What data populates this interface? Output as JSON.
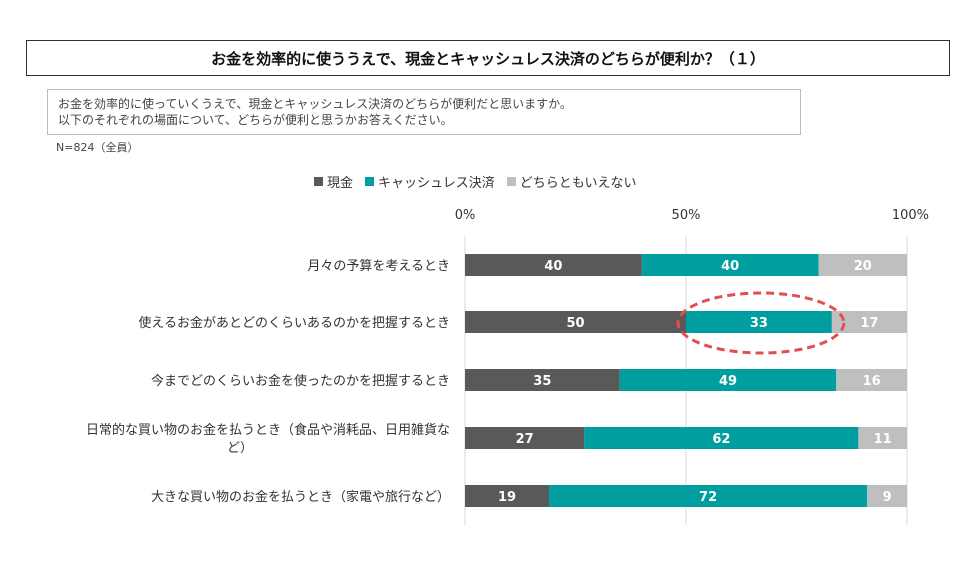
{
  "header": {
    "title": "お金を効率的に使ううえで、現金とキャッシュレス決済のどちらが便利か？（１）"
  },
  "question": {
    "line1": "お金を効率的に使っていくうえで、現金とキャッシュレス決済のどちらが便利だと思いますか。",
    "line2": "以下のそれぞれの場面について、どちらが便利と思うかお答えください。"
  },
  "sample_note": "N=824（全員）",
  "colors": {
    "cash": "#595959",
    "cashless": "#009E9E",
    "neither": "#BFBFBF",
    "highlight": "#E05050"
  },
  "chart_data": {
    "type": "bar",
    "orientation": "horizontal",
    "stacked": true,
    "legend_position": "top",
    "xlim": [
      0,
      100
    ],
    "x_ticks": [
      "0%",
      "50%",
      "100%"
    ],
    "categories": [
      [
        "月々の予算を考えるとき"
      ],
      [
        "使えるお金があとどのくらいあるのかを把握するとき"
      ],
      [
        "今までどのくらいお金を使ったのかを把握するとき"
      ],
      [
        "日常的な買い物のお金を払うとき（食品や消耗品、日用雑貨な",
        "ど）"
      ],
      [
        "大きな買い物のお金を払うとき（家電や旅行など）"
      ]
    ],
    "series": [
      {
        "name": "現金",
        "values": [
          40,
          50,
          35,
          27,
          19
        ]
      },
      {
        "name": "キャッシュレス決済",
        "values": [
          40,
          33,
          49,
          62,
          72
        ]
      },
      {
        "name": "どちらともいえない",
        "values": [
          20,
          17,
          16,
          11,
          9
        ]
      }
    ],
    "highlight": {
      "category_index": 1,
      "series_index": 1
    }
  }
}
